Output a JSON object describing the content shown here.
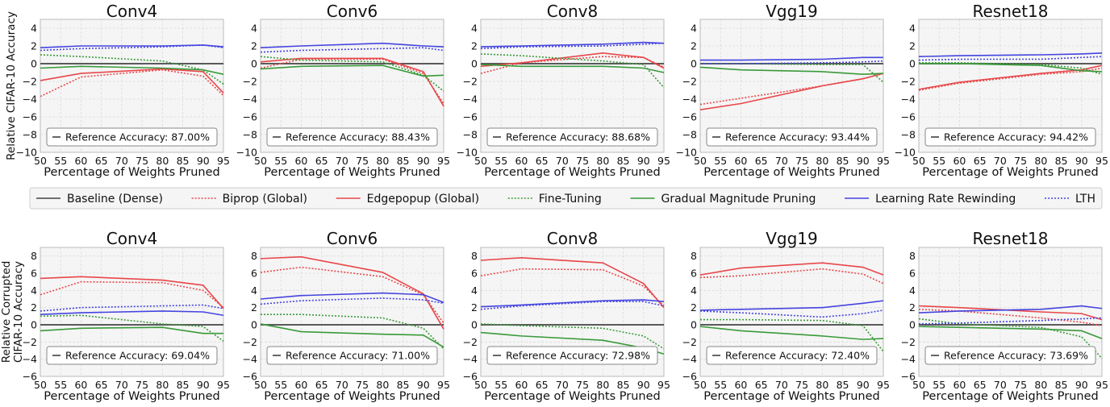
{
  "chart_data": {
    "type": "line",
    "grid": true,
    "x": [
      50,
      60,
      80,
      90,
      95
    ],
    "xlabel": "Percentage of Weights Pruned",
    "xticks": [
      50,
      55,
      60,
      65,
      70,
      75,
      80,
      85,
      90,
      95
    ],
    "xlim": [
      50,
      95
    ],
    "legend": {
      "placement": "center",
      "entries": [
        {
          "name": "Baseline (Dense)",
          "color": "#444444",
          "style": "solid"
        },
        {
          "name": "Biprop (Global)",
          "color": "#e8474a",
          "style": "dotted"
        },
        {
          "name": "Edgepopup (Global)",
          "color": "#e8474a",
          "style": "solid"
        },
        {
          "name": "Fine-Tuning",
          "color": "#3a9a3a",
          "style": "dotted"
        },
        {
          "name": "Gradual Magnitude Pruning",
          "color": "#3a9a3a",
          "style": "solid"
        },
        {
          "name": "Learning Rate Rewinding",
          "color": "#4444e0",
          "style": "solid"
        },
        {
          "name": "LTH",
          "color": "#4444e0",
          "style": "dotted"
        }
      ]
    },
    "rows": [
      {
        "ylabel": [
          "Relative CIFAR-10 Accuracy"
        ],
        "ylim": [
          -10,
          5
        ],
        "yticks": [
          -10,
          -8,
          -6,
          -4,
          -2,
          0,
          2,
          4
        ],
        "panels": [
          {
            "title": "Conv4",
            "reference": "Reference Accuracy: 87.00%",
            "series": [
              [
                -3.7,
                -1.5,
                -0.7,
                -1.4,
                -3.6
              ],
              [
                -1.9,
                -1.1,
                -0.6,
                -0.9,
                -3.3
              ],
              [
                1.0,
                0.8,
                0.3,
                -0.7,
                -2.3
              ],
              [
                -0.5,
                -0.3,
                -0.5,
                -0.7,
                -1.2
              ],
              [
                1.8,
                2.0,
                2.0,
                2.1,
                1.9
              ],
              [
                1.5,
                1.7,
                1.9,
                2.1,
                1.8
              ]
            ]
          },
          {
            "title": "Conv6",
            "reference": "Reference Accuracy: 88.43%",
            "series": [
              [
                -0.5,
                0.5,
                0.5,
                -1.1,
                -4.5
              ],
              [
                0.2,
                0.6,
                0.6,
                -0.9,
                -4.8
              ],
              [
                0.8,
                0.4,
                0.2,
                -1.3,
                -3.1
              ],
              [
                -0.6,
                -0.3,
                -0.2,
                -1.4,
                -1.3
              ],
              [
                1.8,
                2.0,
                2.3,
                2.0,
                1.9
              ],
              [
                1.3,
                1.5,
                1.7,
                1.8,
                1.5
              ]
            ]
          },
          {
            "title": "Conv8",
            "reference": "Reference Accuracy: 88.68%",
            "series": [
              [
                -1.1,
                0.1,
                0.8,
                0.7,
                -0.4
              ],
              [
                -0.3,
                0.1,
                1.2,
                0.7,
                -0.5
              ],
              [
                1.1,
                0.9,
                0.3,
                -0.1,
                -2.7
              ],
              [
                -0.1,
                -0.3,
                -0.3,
                -0.5,
                -1.0
              ],
              [
                1.9,
                2.0,
                2.2,
                2.4,
                2.3
              ],
              [
                1.7,
                1.9,
                2.0,
                2.2,
                2.3
              ]
            ]
          },
          {
            "title": "Vgg19",
            "reference": "Reference Accuracy: 93.44%",
            "series": [
              [
                -4.6,
                -3.9,
                -2.5,
                -1.7,
                -1.1
              ],
              [
                -5.2,
                -4.5,
                -2.5,
                -1.7,
                -1.1
              ],
              [
                0.0,
                0.0,
                -0.1,
                -0.1,
                -2.1
              ],
              [
                -0.4,
                -0.7,
                -0.9,
                -1.2,
                -1.1
              ],
              [
                0.4,
                0.4,
                0.5,
                0.7,
                0.7
              ],
              [
                0.0,
                0.0,
                0.1,
                0.2,
                0.3
              ]
            ]
          },
          {
            "title": "Resnet18",
            "reference": "Reference Accuracy: 94.42%",
            "series": [
              [
                -3.0,
                -2.2,
                -1.2,
                -0.9,
                -0.5
              ],
              [
                -2.9,
                -2.1,
                -1.1,
                -0.7,
                -0.2
              ],
              [
                0.1,
                0.1,
                -0.1,
                -0.5,
                -1.2
              ],
              [
                0.0,
                0.0,
                -0.2,
                -0.8,
                -0.9
              ],
              [
                0.8,
                0.9,
                1.0,
                1.1,
                1.2
              ],
              [
                0.4,
                0.5,
                0.5,
                0.7,
                0.8
              ]
            ]
          }
        ]
      },
      {
        "ylabel": [
          "Relative Corrupted",
          "CIFAR-10 Accuracy"
        ],
        "ylim": [
          -6,
          9
        ],
        "yticks": [
          -6,
          -4,
          -2,
          0,
          2,
          4,
          6,
          8
        ],
        "panels": [
          {
            "title": "Conv4",
            "reference": "Reference Accuracy: 69.04%",
            "series": [
              [
                3.5,
                5.0,
                4.9,
                4.0,
                2.0
              ],
              [
                5.4,
                5.6,
                5.2,
                4.6,
                1.9
              ],
              [
                1.0,
                1.1,
                0.1,
                -0.2,
                -1.9
              ],
              [
                -0.7,
                -0.4,
                -0.3,
                -1.0,
                -1.0
              ],
              [
                1.2,
                1.4,
                1.6,
                1.5,
                1.1
              ],
              [
                1.6,
                2.0,
                2.2,
                2.3,
                1.9
              ]
            ]
          },
          {
            "title": "Conv6",
            "reference": "Reference Accuracy: 71.00%",
            "series": [
              [
                6.1,
                6.7,
                5.6,
                3.5,
                0.2
              ],
              [
                7.7,
                7.9,
                6.1,
                3.6,
                -0.5
              ],
              [
                1.2,
                1.2,
                0.8,
                -0.4,
                -2.8
              ],
              [
                0.1,
                -0.8,
                -1.1,
                -1.2,
                -2.6
              ],
              [
                3.0,
                3.4,
                3.7,
                3.5,
                2.6
              ],
              [
                2.4,
                2.8,
                3.1,
                2.9,
                2.5
              ]
            ]
          },
          {
            "title": "Conv8",
            "reference": "Reference Accuracy: 72.98%",
            "series": [
              [
                5.7,
                6.5,
                6.4,
                4.5,
                2.2
              ],
              [
                7.5,
                7.8,
                7.2,
                4.8,
                2.0
              ],
              [
                0.1,
                -0.1,
                -0.4,
                -1.3,
                -2.8
              ],
              [
                -0.9,
                -1.3,
                -1.8,
                -2.7,
                -3.4
              ],
              [
                2.1,
                2.3,
                2.8,
                2.9,
                2.7
              ],
              [
                1.8,
                2.2,
                2.7,
                2.7,
                2.2
              ]
            ]
          },
          {
            "title": "Vgg19",
            "reference": "Reference Accuracy: 72.40%",
            "series": [
              [
                5.5,
                5.7,
                6.5,
                5.9,
                4.8
              ],
              [
                5.8,
                6.6,
                7.2,
                6.7,
                5.8
              ],
              [
                0.6,
                0.6,
                0.5,
                -0.1,
                -3.1
              ],
              [
                -0.2,
                -0.7,
                -1.3,
                -1.7,
                -1.6
              ],
              [
                1.7,
                1.8,
                2.0,
                2.5,
                2.8
              ],
              [
                1.6,
                1.4,
                0.9,
                1.3,
                1.7
              ]
            ]
          },
          {
            "title": "Resnet18",
            "reference": "Reference Accuracy: 73.69%",
            "series": [
              [
                1.8,
                1.6,
                0.8,
                0.3,
                -0.1
              ],
              [
                2.2,
                2.0,
                1.5,
                1.3,
                0.6
              ],
              [
                0.7,
                0.1,
                -0.3,
                -1.4,
                -3.9
              ],
              [
                -0.2,
                -0.3,
                -0.5,
                -0.7,
                -1.6
              ],
              [
                1.4,
                1.6,
                1.8,
                2.2,
                1.9
              ],
              [
                0.1,
                0.2,
                0.5,
                0.7,
                0.8
              ]
            ]
          }
        ]
      }
    ]
  }
}
